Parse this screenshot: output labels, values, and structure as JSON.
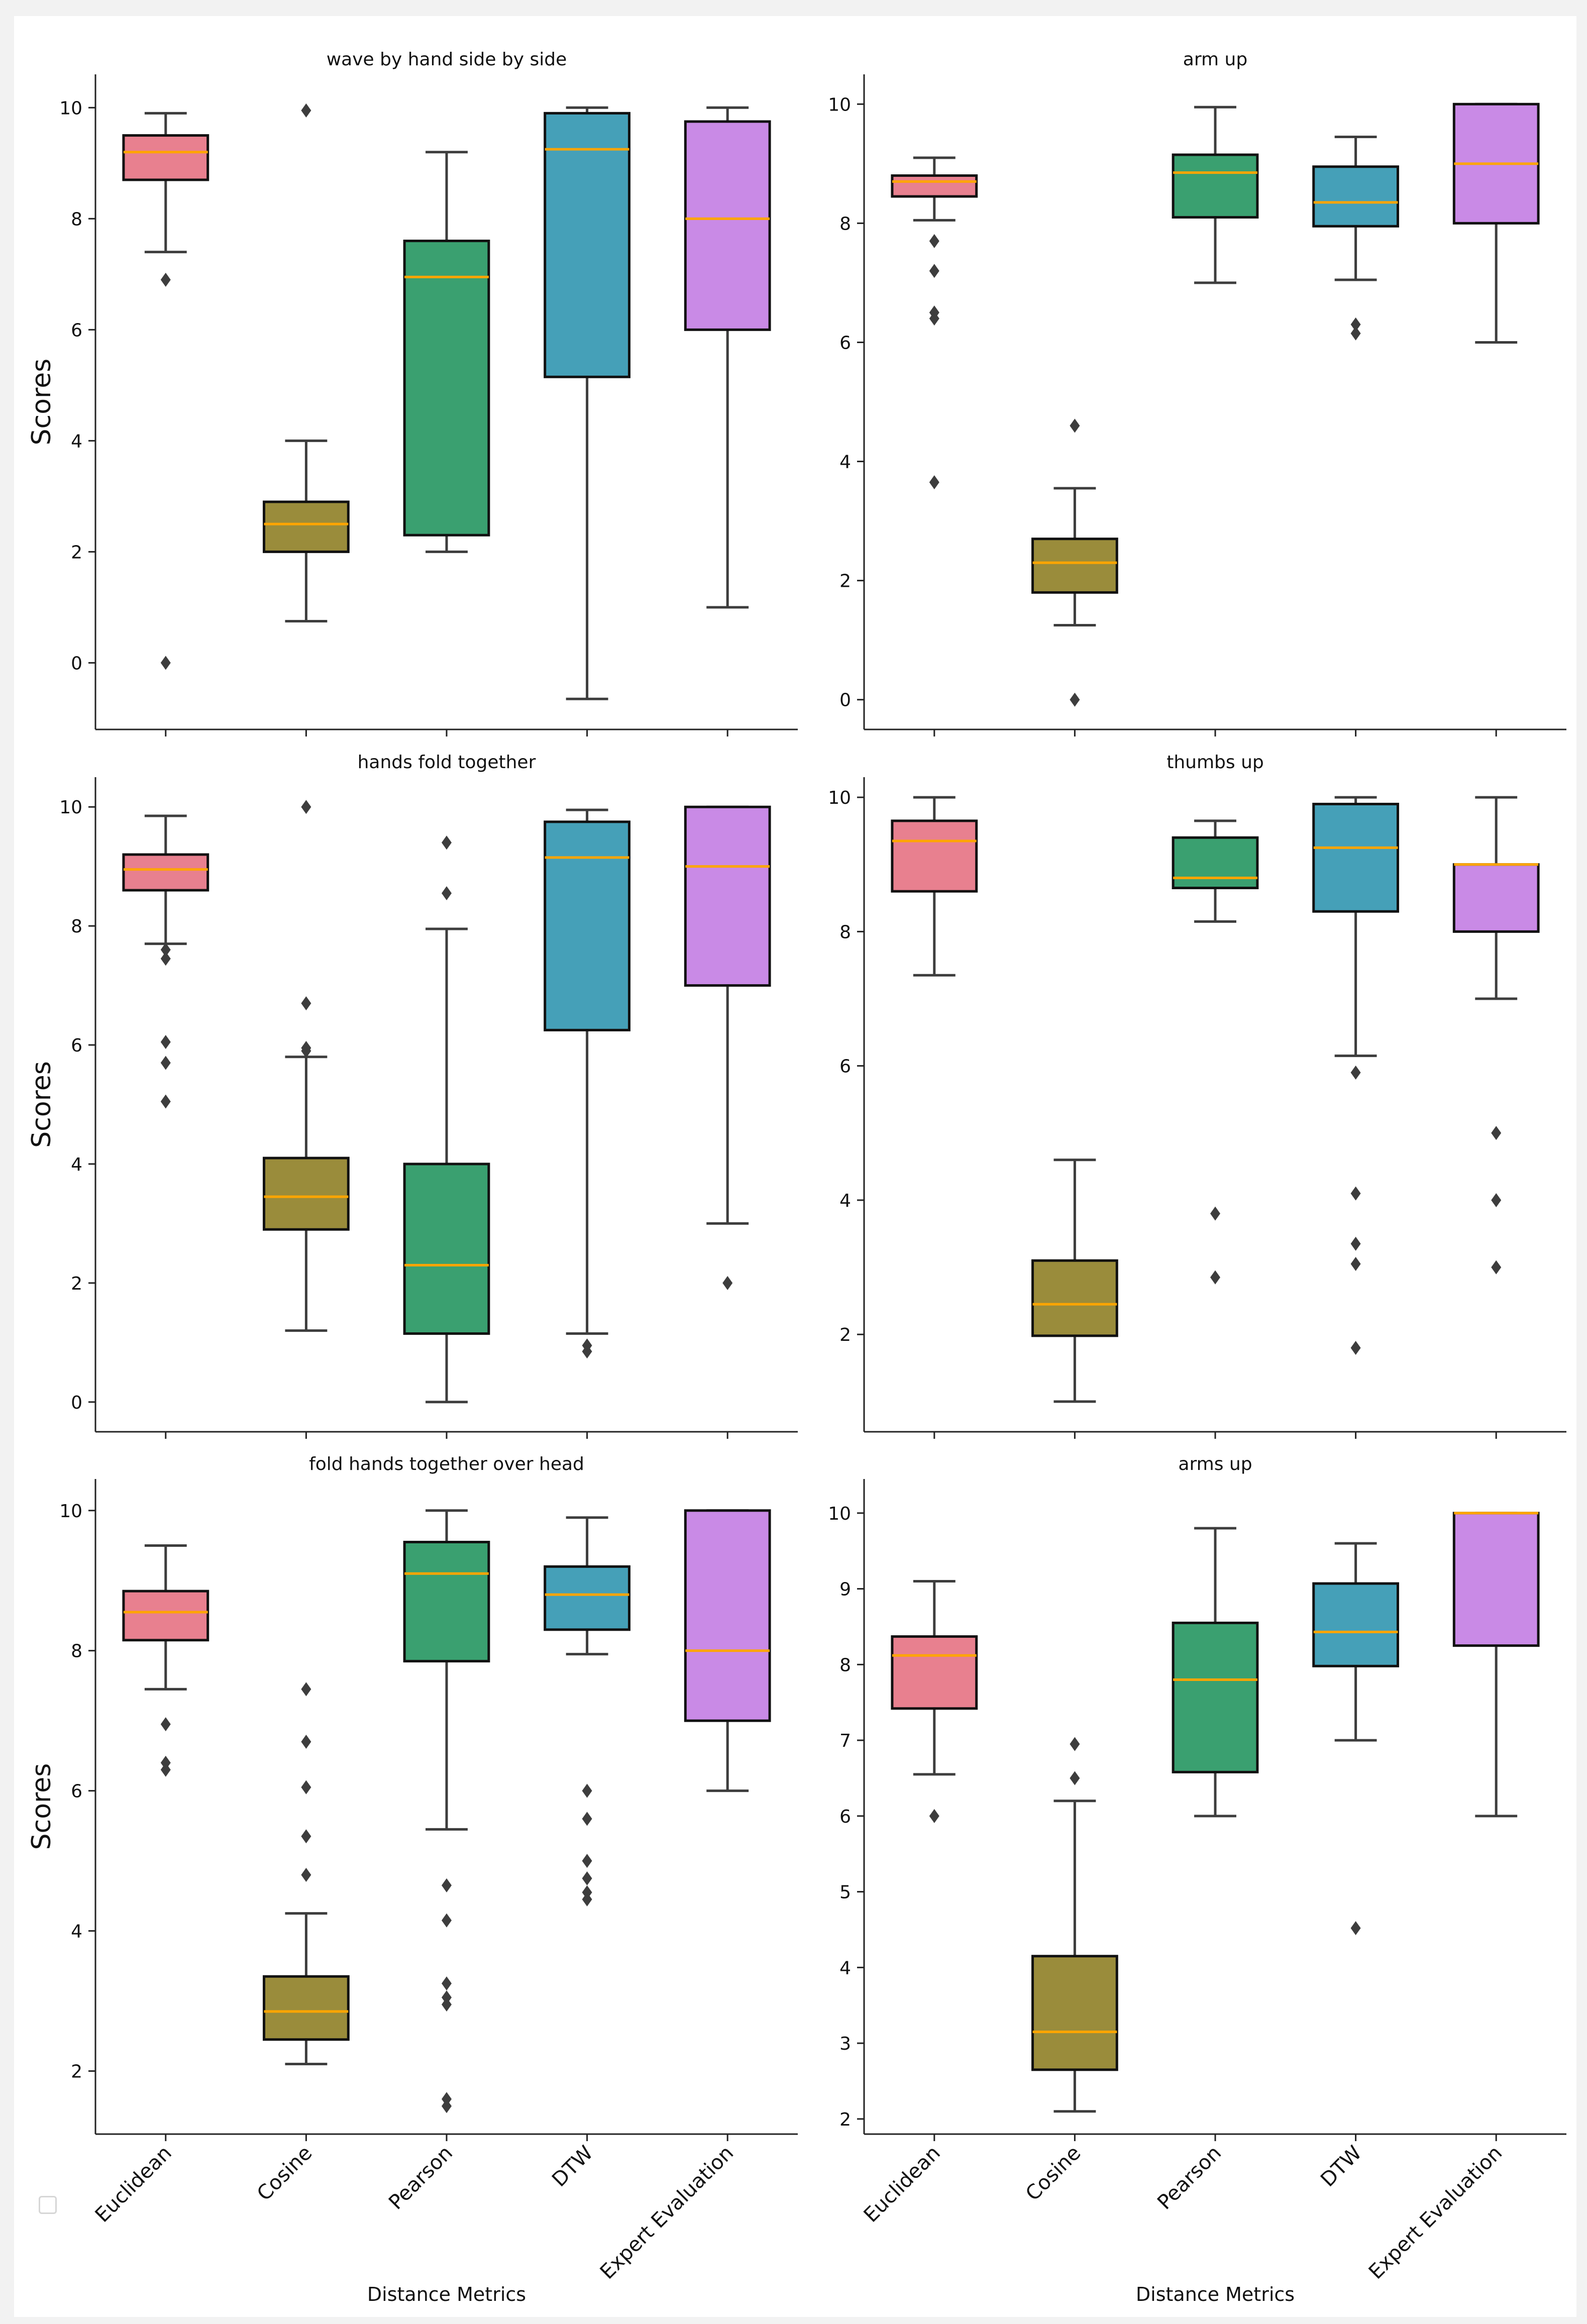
{
  "figure": {
    "xlabel": "Distance Metrics",
    "ylabel": "Scores",
    "categories": [
      "Euclidean",
      "Cosine",
      "Pearson",
      "DTW",
      "Expert Evaluation"
    ],
    "colors": {
      "Euclidean": "#e8808f",
      "Cosine": "#9a8c3b",
      "Pearson": "#3aa070",
      "DTW": "#45a0b8",
      "Expert Evaluation": "#c98ae6",
      "median": "#ffa500",
      "whisker": "#3d3d3d",
      "box_edge": "#111111",
      "flier": "#3d3d3d",
      "axis": "#222222"
    }
  },
  "chart_data": [
    {
      "type": "box",
      "title": "wave by hand side by side",
      "xlabel": "",
      "ylabel": "Scores",
      "ylim": [
        -1.2,
        10.6
      ],
      "yticks": [
        0,
        2,
        4,
        6,
        8,
        10
      ],
      "boxes": [
        {
          "category": "Euclidean",
          "whislo": 7.4,
          "q1": 8.7,
          "med": 9.2,
          "q3": 9.5,
          "whishi": 9.9,
          "fliers": [
            6.9,
            0.0
          ]
        },
        {
          "category": "Cosine",
          "whislo": 0.75,
          "q1": 2.0,
          "med": 2.5,
          "q3": 2.9,
          "whishi": 4.0,
          "fliers": [
            9.95
          ]
        },
        {
          "category": "Pearson",
          "whislo": 2.0,
          "q1": 2.3,
          "med": 6.95,
          "q3": 7.6,
          "whishi": 9.2,
          "fliers": []
        },
        {
          "category": "DTW",
          "whislo": -0.65,
          "q1": 5.15,
          "med": 9.25,
          "q3": 9.9,
          "whishi": 10.0,
          "fliers": []
        },
        {
          "category": "Expert Evaluation",
          "whislo": 1.0,
          "q1": 6.0,
          "med": 8.0,
          "q3": 9.75,
          "whishi": 10.0,
          "fliers": []
        }
      ]
    },
    {
      "type": "box",
      "title": "arm up",
      "xlabel": "",
      "ylabel": "",
      "ylim": [
        -0.5,
        10.5
      ],
      "yticks": [
        0,
        2,
        4,
        6,
        8,
        10
      ],
      "boxes": [
        {
          "category": "Euclidean",
          "whislo": 8.05,
          "q1": 8.45,
          "med": 8.7,
          "q3": 8.8,
          "whishi": 9.1,
          "fliers": [
            7.7,
            7.2,
            6.5,
            6.4,
            3.65
          ]
        },
        {
          "category": "Cosine",
          "whislo": 1.25,
          "q1": 1.8,
          "med": 2.3,
          "q3": 2.7,
          "whishi": 3.55,
          "fliers": [
            4.6,
            0.0
          ]
        },
        {
          "category": "Pearson",
          "whislo": 7.0,
          "q1": 8.1,
          "med": 8.85,
          "q3": 9.15,
          "whishi": 9.95,
          "fliers": []
        },
        {
          "category": "DTW",
          "whislo": 7.05,
          "q1": 7.95,
          "med": 8.35,
          "q3": 8.95,
          "whishi": 9.45,
          "fliers": [
            6.3,
            6.15
          ]
        },
        {
          "category": "Expert Evaluation",
          "whislo": 6.0,
          "q1": 8.0,
          "med": 9.0,
          "q3": 10.0,
          "whishi": 10.0,
          "fliers": []
        }
      ]
    },
    {
      "type": "box",
      "title": "hands fold together",
      "xlabel": "",
      "ylabel": "Scores",
      "ylim": [
        -0.5,
        10.5
      ],
      "yticks": [
        0,
        2,
        4,
        6,
        8,
        10
      ],
      "boxes": [
        {
          "category": "Euclidean",
          "whislo": 7.7,
          "q1": 8.6,
          "med": 8.95,
          "q3": 9.2,
          "whishi": 9.85,
          "fliers": [
            7.6,
            7.45,
            6.05,
            5.7,
            5.05
          ]
        },
        {
          "category": "Cosine",
          "whislo": 1.2,
          "q1": 2.9,
          "med": 3.45,
          "q3": 4.1,
          "whishi": 5.8,
          "fliers": [
            10.0,
            6.7,
            5.95,
            5.9
          ]
        },
        {
          "category": "Pearson",
          "whislo": 0.0,
          "q1": 1.15,
          "med": 2.3,
          "q3": 4.0,
          "whishi": 7.95,
          "fliers": [
            9.4,
            8.55
          ]
        },
        {
          "category": "DTW",
          "whislo": 1.15,
          "q1": 6.25,
          "med": 9.15,
          "q3": 9.75,
          "whishi": 9.95,
          "fliers": [
            0.95,
            0.85
          ]
        },
        {
          "category": "Expert Evaluation",
          "whislo": 3.0,
          "q1": 7.0,
          "med": 9.0,
          "q3": 10.0,
          "whishi": 10.0,
          "fliers": [
            2.0
          ]
        }
      ]
    },
    {
      "type": "box",
      "title": "thumbs up",
      "xlabel": "",
      "ylabel": "",
      "ylim": [
        0.55,
        10.3
      ],
      "yticks": [
        2,
        4,
        6,
        8,
        10
      ],
      "boxes": [
        {
          "category": "Euclidean",
          "whislo": 7.35,
          "q1": 8.6,
          "med": 9.35,
          "q3": 9.65,
          "whishi": 10.0,
          "fliers": []
        },
        {
          "category": "Cosine",
          "whislo": 1.0,
          "q1": 1.98,
          "med": 2.45,
          "q3": 3.1,
          "whishi": 4.6,
          "fliers": []
        },
        {
          "category": "Pearson",
          "whislo": 8.15,
          "q1": 8.65,
          "med": 8.8,
          "q3": 9.4,
          "whishi": 9.65,
          "fliers": [
            3.8,
            2.85
          ]
        },
        {
          "category": "DTW",
          "whislo": 6.15,
          "q1": 8.3,
          "med": 9.25,
          "q3": 9.9,
          "whishi": 10.0,
          "fliers": [
            5.9,
            4.1,
            3.35,
            3.05,
            1.8
          ]
        },
        {
          "category": "Expert Evaluation",
          "whislo": 7.0,
          "q1": 8.0,
          "med": 9.0,
          "q3": 9.0,
          "whishi": 10.0,
          "fliers": [
            5.0,
            4.0,
            3.0
          ]
        }
      ]
    },
    {
      "type": "box",
      "title": "fold hands together over head",
      "xlabel": "Distance Metrics",
      "ylabel": "Scores",
      "ylim": [
        1.1,
        10.45
      ],
      "yticks": [
        2,
        4,
        6,
        8,
        10
      ],
      "boxes": [
        {
          "category": "Euclidean",
          "whislo": 7.45,
          "q1": 8.15,
          "med": 8.55,
          "q3": 8.85,
          "whishi": 9.5,
          "fliers": [
            6.95,
            6.4,
            6.3
          ]
        },
        {
          "category": "Cosine",
          "whislo": 2.1,
          "q1": 2.45,
          "med": 2.85,
          "q3": 3.35,
          "whishi": 4.25,
          "fliers": [
            7.45,
            6.7,
            6.05,
            5.35,
            4.8
          ]
        },
        {
          "category": "Pearson",
          "whislo": 5.45,
          "q1": 7.85,
          "med": 9.1,
          "q3": 9.55,
          "whishi": 10.0,
          "fliers": [
            4.65,
            4.15,
            3.25,
            3.05,
            2.95,
            1.6,
            1.5
          ]
        },
        {
          "category": "DTW",
          "whislo": 7.95,
          "q1": 8.3,
          "med": 8.8,
          "q3": 9.2,
          "whishi": 9.9,
          "fliers": [
            6.0,
            5.6,
            5.0,
            4.75,
            4.55,
            4.45
          ]
        },
        {
          "category": "Expert Evaluation",
          "whislo": 6.0,
          "q1": 7.0,
          "med": 8.0,
          "q3": 10.0,
          "whishi": 10.0,
          "fliers": []
        }
      ]
    },
    {
      "type": "box",
      "title": "arms up",
      "xlabel": "Distance Metrics",
      "ylabel": "",
      "ylim": [
        1.8,
        10.45
      ],
      "yticks": [
        2,
        3,
        4,
        5,
        6,
        7,
        8,
        9,
        10
      ],
      "boxes": [
        {
          "category": "Euclidean",
          "whislo": 6.55,
          "q1": 7.42,
          "med": 8.12,
          "q3": 8.37,
          "whishi": 9.1,
          "fliers": [
            6.0
          ]
        },
        {
          "category": "Cosine",
          "whislo": 2.1,
          "q1": 2.65,
          "med": 3.15,
          "q3": 4.15,
          "whishi": 6.2,
          "fliers": [
            6.95,
            6.5
          ]
        },
        {
          "category": "Pearson",
          "whislo": 6.0,
          "q1": 6.58,
          "med": 7.8,
          "q3": 8.55,
          "whishi": 9.8,
          "fliers": []
        },
        {
          "category": "DTW",
          "whislo": 7.0,
          "q1": 7.98,
          "med": 8.43,
          "q3": 9.07,
          "whishi": 9.6,
          "fliers": [
            4.52
          ]
        },
        {
          "category": "Expert Evaluation",
          "whislo": 6.0,
          "q1": 8.25,
          "med": 10.0,
          "q3": 10.0,
          "whishi": 10.0,
          "fliers": []
        }
      ]
    }
  ]
}
